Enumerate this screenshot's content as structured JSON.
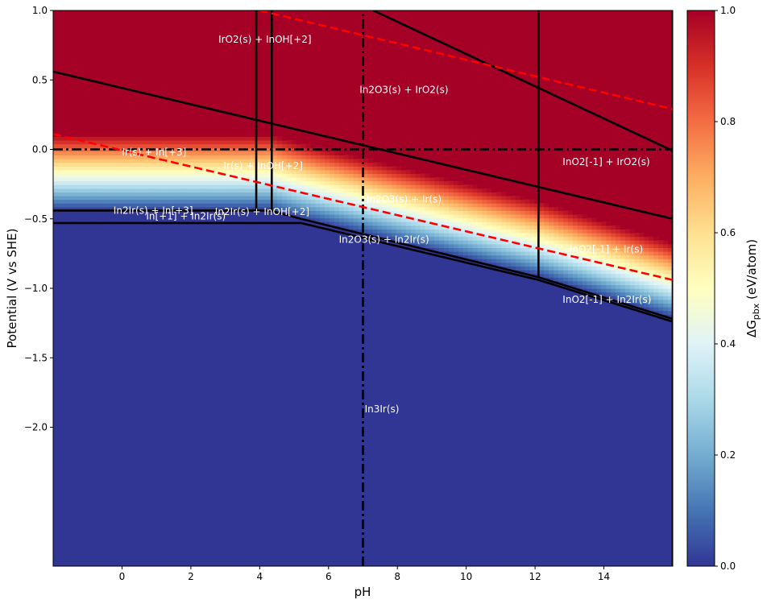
{
  "chart_data": {
    "type": "heatmap",
    "title": "",
    "xlabel": "pH",
    "ylabel": "Potential (V vs SHE)",
    "xlim": [
      -2,
      16
    ],
    "ylim": [
      -3,
      1
    ],
    "x_ticks": [
      {
        "value": 0,
        "label": "0"
      },
      {
        "value": 2,
        "label": "2"
      },
      {
        "value": 4,
        "label": "4"
      },
      {
        "value": 6,
        "label": "6"
      },
      {
        "value": 8,
        "label": "8"
      },
      {
        "value": 10,
        "label": "10"
      },
      {
        "value": 12,
        "label": "12"
      },
      {
        "value": 14,
        "label": "14"
      }
    ],
    "y_ticks": [
      {
        "value": 1.0,
        "label": "1.0"
      },
      {
        "value": 0.5,
        "label": "0.5"
      },
      {
        "value": 0.0,
        "label": "0.0"
      },
      {
        "value": -0.5,
        "label": "−0.5"
      },
      {
        "value": -1.0,
        "label": "−1.0"
      },
      {
        "value": -1.5,
        "label": "−1.5"
      },
      {
        "value": -2.0,
        "label": "−2.0"
      }
    ],
    "colorbar": {
      "label": "ΔG",
      "label_sub": "pbx",
      "label_unit": " (eV/atom)",
      "range": [
        0.0,
        1.0
      ],
      "ticks": [
        {
          "value": 0.0,
          "label": "0.0"
        },
        {
          "value": 0.2,
          "label": "0.2"
        },
        {
          "value": 0.4,
          "label": "0.4"
        },
        {
          "value": 0.6,
          "label": "0.6"
        },
        {
          "value": 0.8,
          "label": "0.8"
        },
        {
          "value": 1.0,
          "label": "1.0"
        }
      ],
      "colormap": "RdYlBu_r",
      "colors": [
        "#313695",
        "#4575b4",
        "#74add1",
        "#abd9e9",
        "#e0f3f8",
        "#ffffbf",
        "#fee090",
        "#fdae61",
        "#f46d43",
        "#d73027",
        "#a50026"
      ]
    },
    "gradient_band": {
      "description_values": "dG = 0 along lower boundary, reaches 1 about 0.55 V higher",
      "lower_boundary": [
        [
          -2,
          -0.44
        ],
        [
          4.3,
          -0.44
        ],
        [
          5.2,
          -0.5
        ],
        [
          12.1,
          -0.92
        ],
        [
          16,
          -1.22
        ]
      ],
      "band_height": 0.55
    },
    "boundaries": [
      {
        "points": [
          [
            -2,
            0.56
          ],
          [
            16,
            -0.5
          ]
        ]
      },
      {
        "points": [
          [
            -2,
            -0.44
          ],
          [
            4.3,
            -0.44
          ],
          [
            5.2,
            -0.5
          ],
          [
            12.1,
            -0.92
          ],
          [
            16,
            -1.22
          ]
        ]
      },
      {
        "points": [
          [
            -2,
            -0.53
          ],
          [
            5.2,
            -0.53
          ],
          [
            12.1,
            -0.94
          ],
          [
            16,
            -1.24
          ]
        ]
      },
      {
        "points": [
          [
            3.9,
            1.0
          ],
          [
            3.9,
            -0.44
          ]
        ]
      },
      {
        "points": [
          [
            4.35,
            1.0
          ],
          [
            4.35,
            -0.44
          ]
        ]
      },
      {
        "points": [
          [
            12.1,
            1.0
          ],
          [
            12.1,
            -0.92
          ]
        ]
      },
      {
        "points": [
          [
            7.3,
            1.0
          ],
          [
            16,
            -0.01
          ]
        ]
      },
      {
        "points": [
          [
            16,
            1.0
          ],
          [
            16,
            -3.0
          ]
        ]
      }
    ],
    "water_lines": [
      {
        "points": [
          [
            -2,
            0.11
          ],
          [
            16,
            -0.94
          ]
        ]
      },
      {
        "points": [
          [
            4,
            1.0
          ],
          [
            16,
            0.29
          ]
        ]
      }
    ],
    "neutral_lines": [
      {
        "orientation": "horizontal",
        "value": 0.0
      },
      {
        "orientation": "vertical",
        "value": 7.0
      }
    ],
    "region_labels": [
      {
        "text": "IrO2(s) + InOH[+2]",
        "x": 2.8,
        "y": 0.79
      },
      {
        "text": "In2O3(s) + IrO2(s)",
        "x": 6.9,
        "y": 0.43
      },
      {
        "text": "Ir(s) + In[+3]",
        "x": 0.0,
        "y": -0.02
      },
      {
        "text": "Ir(s) + InOH[+2]",
        "x": 2.95,
        "y": -0.12
      },
      {
        "text": "InO2[-1] + IrO2(s)",
        "x": 12.8,
        "y": -0.09
      },
      {
        "text": "In2O3(s) + Ir(s)",
        "x": 7.1,
        "y": -0.36
      },
      {
        "text": "In2Ir(s) + In[+3]",
        "x": -0.25,
        "y": -0.44
      },
      {
        "text": "In[+1] + In2Ir(s)",
        "x": 0.7,
        "y": -0.48
      },
      {
        "text": "In2Ir(s) + InOH[+2]",
        "x": 2.7,
        "y": -0.45
      },
      {
        "text": "In2O3(s) + In2Ir(s)",
        "x": 6.3,
        "y": -0.65
      },
      {
        "text": "InO2[-1] + Ir(s)",
        "x": 13.0,
        "y": -0.72
      },
      {
        "text": "InO2[-1] + In2Ir(s)",
        "x": 12.8,
        "y": -1.08
      },
      {
        "text": "In3Ir(s)",
        "x": 7.05,
        "y": -1.87
      }
    ]
  }
}
